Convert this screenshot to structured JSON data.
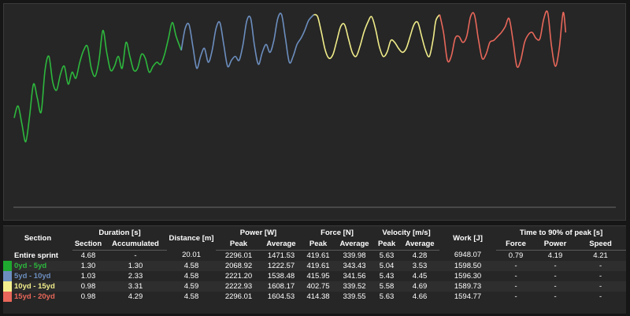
{
  "colors": {
    "background": "#161616",
    "panel": "#262626",
    "gridline": "#6a6a6a",
    "sections": [
      "#2db83d",
      "#6c8ebf",
      "#f0ec8a",
      "#e8675a"
    ]
  },
  "chart_data": {
    "type": "line",
    "title": "",
    "xlabel": "",
    "ylabel": "",
    "grid": false,
    "legend": "none",
    "x_range": [
      0,
      4.68
    ],
    "y_range": [
      0,
      10
    ],
    "series": [
      {
        "section": "0yd - 5yd",
        "color": "#2db83d",
        "x": [
          0.0,
          0.03,
          0.06,
          0.09,
          0.12,
          0.15,
          0.18,
          0.21,
          0.24,
          0.27,
          0.3,
          0.33,
          0.36,
          0.39,
          0.42,
          0.45,
          0.48,
          0.51,
          0.54,
          0.57,
          0.6,
          0.63,
          0.66,
          0.69,
          0.72,
          0.75,
          0.78,
          0.81,
          0.84,
          0.87,
          0.9,
          0.93,
          0.96,
          0.99,
          1.02,
          1.05,
          1.08,
          1.11,
          1.14,
          1.17,
          1.2,
          1.23,
          1.26,
          1.3
        ],
        "y": [
          4.5,
          5.1,
          4.2,
          3.3,
          4.6,
          6.2,
          5.5,
          4.8,
          6.9,
          7.6,
          6.3,
          5.9,
          6.7,
          7.1,
          6.2,
          6.8,
          6.5,
          7.3,
          7.9,
          8.1,
          7.0,
          6.6,
          7.4,
          8.9,
          7.8,
          6.9,
          7.1,
          7.6,
          7.0,
          8.3,
          7.6,
          6.9,
          7.0,
          7.7,
          7.5,
          6.8,
          7.1,
          7.3,
          7.2,
          7.7,
          8.5,
          9.3,
          8.6,
          7.9
        ]
      },
      {
        "section": "5yd - 10yd",
        "color": "#6c8ebf",
        "x": [
          1.3,
          1.33,
          1.36,
          1.39,
          1.42,
          1.45,
          1.48,
          1.51,
          1.54,
          1.57,
          1.6,
          1.63,
          1.66,
          1.69,
          1.72,
          1.75,
          1.78,
          1.81,
          1.84,
          1.87,
          1.9,
          1.93,
          1.96,
          1.99,
          2.02,
          2.05,
          2.08,
          2.11,
          2.14,
          2.17,
          2.2,
          2.23,
          2.26,
          2.29,
          2.33
        ],
        "y": [
          7.9,
          9.0,
          9.2,
          8.1,
          7.0,
          7.6,
          8.0,
          7.3,
          7.9,
          9.0,
          9.3,
          8.2,
          7.1,
          7.4,
          7.6,
          7.4,
          8.2,
          9.4,
          9.5,
          8.1,
          7.2,
          7.8,
          8.2,
          7.8,
          8.4,
          9.5,
          9.7,
          8.5,
          7.3,
          7.6,
          8.2,
          8.5,
          8.9,
          9.4,
          9.7
        ]
      },
      {
        "section": "10yd - 15yd",
        "color": "#f0ec8a",
        "x": [
          2.33,
          2.36,
          2.39,
          2.42,
          2.45,
          2.48,
          2.51,
          2.54,
          2.57,
          2.6,
          2.63,
          2.66,
          2.69,
          2.72,
          2.75,
          2.78,
          2.81,
          2.84,
          2.87,
          2.9,
          2.93,
          2.96,
          2.99,
          3.02,
          3.05,
          3.08,
          3.11,
          3.14,
          3.17,
          3.2,
          3.23,
          3.26,
          3.28,
          3.31
        ],
        "y": [
          9.7,
          9.6,
          8.8,
          7.9,
          7.5,
          7.7,
          8.4,
          9.1,
          9.2,
          8.5,
          7.8,
          7.6,
          8.1,
          8.8,
          9.3,
          9.6,
          9.0,
          8.1,
          7.6,
          7.8,
          8.4,
          8.3,
          8.0,
          7.8,
          8.0,
          8.6,
          9.2,
          9.3,
          8.6,
          7.9,
          7.6,
          8.5,
          9.4,
          9.7
        ]
      },
      {
        "section": "15yd - 20yd",
        "color": "#e8675a",
        "x": [
          3.31,
          3.34,
          3.37,
          3.4,
          3.43,
          3.46,
          3.49,
          3.52,
          3.55,
          3.58,
          3.61,
          3.64,
          3.67,
          3.7,
          3.73,
          3.76,
          3.79,
          3.82,
          3.85,
          3.88,
          3.91,
          3.94,
          3.97,
          4.0,
          4.03,
          4.06,
          4.09,
          4.12,
          4.15,
          4.18,
          4.21,
          4.24,
          4.27,
          4.29
        ],
        "y": [
          9.7,
          8.8,
          7.4,
          7.6,
          8.5,
          8.6,
          8.3,
          8.6,
          9.6,
          9.7,
          8.5,
          7.5,
          7.7,
          8.3,
          8.4,
          8.6,
          8.8,
          9.1,
          9.5,
          8.4,
          7.1,
          7.4,
          8.3,
          8.7,
          8.8,
          8.5,
          8.5,
          9.5,
          9.8,
          8.1,
          7.1,
          8.0,
          9.8,
          8.8
        ]
      }
    ]
  },
  "table": {
    "headers": {
      "section": "Section",
      "duration": "Duration [s]",
      "duration_section": "Section",
      "duration_accumulated": "Accumulated",
      "distance": "Distance [m]",
      "power": "Power [W]",
      "power_peak": "Peak",
      "power_average": "Average",
      "force": "Force [N]",
      "force_peak": "Peak",
      "force_average": "Average",
      "velocity": "Velocity [m/s]",
      "velocity_peak": "Peak",
      "velocity_average": "Average",
      "work": "Work [J]",
      "time90": "Time to 90% of peak [s]",
      "time90_force": "Force",
      "time90_power": "Power",
      "time90_speed": "Speed"
    },
    "rows": [
      {
        "label": "Entire sprint",
        "color": "#ffffff",
        "swatch": "",
        "dur_section": "4.68",
        "dur_acc": "-",
        "distance": "20.01",
        "power_peak": "2296.01",
        "power_avg": "1471.53",
        "force_peak": "419.61",
        "force_avg": "339.98",
        "vel_peak": "5.63",
        "vel_avg": "4.28",
        "work": "6948.07",
        "t90_force": "0.79",
        "t90_power": "4.19",
        "t90_speed": "4.21"
      },
      {
        "label": "0yd - 5yd",
        "color": "#2db83d",
        "swatch": "#1fa82f",
        "dur_section": "1.30",
        "dur_acc": "1.30",
        "distance": "4.58",
        "power_peak": "2068.92",
        "power_avg": "1222.57",
        "force_peak": "419.61",
        "force_avg": "343.43",
        "vel_peak": "5.04",
        "vel_avg": "3.53",
        "work": "1598.50",
        "t90_force": "-",
        "t90_power": "-",
        "t90_speed": "-"
      },
      {
        "label": "5yd - 10yd",
        "color": "#6c8ebf",
        "swatch": "#6c8ebf",
        "dur_section": "1.03",
        "dur_acc": "2.33",
        "distance": "4.58",
        "power_peak": "2221.20",
        "power_avg": "1538.48",
        "force_peak": "415.95",
        "force_avg": "341.56",
        "vel_peak": "5.43",
        "vel_avg": "4.45",
        "work": "1596.30",
        "t90_force": "-",
        "t90_power": "-",
        "t90_speed": "-"
      },
      {
        "label": "10yd - 15yd",
        "color": "#f0ec8a",
        "swatch": "#f4f08e",
        "dur_section": "0.98",
        "dur_acc": "3.31",
        "distance": "4.59",
        "power_peak": "2222.93",
        "power_avg": "1608.17",
        "force_peak": "402.75",
        "force_avg": "339.52",
        "vel_peak": "5.58",
        "vel_avg": "4.69",
        "work": "1589.73",
        "t90_force": "-",
        "t90_power": "-",
        "t90_speed": "-"
      },
      {
        "label": "15yd - 20yd",
        "color": "#e8675a",
        "swatch": "#e8675a",
        "dur_section": "0.98",
        "dur_acc": "4.29",
        "distance": "4.58",
        "power_peak": "2296.01",
        "power_avg": "1604.53",
        "force_peak": "414.38",
        "force_avg": "339.55",
        "vel_peak": "5.63",
        "vel_avg": "4.66",
        "work": "1594.77",
        "t90_force": "-",
        "t90_power": "-",
        "t90_speed": "-"
      }
    ]
  }
}
